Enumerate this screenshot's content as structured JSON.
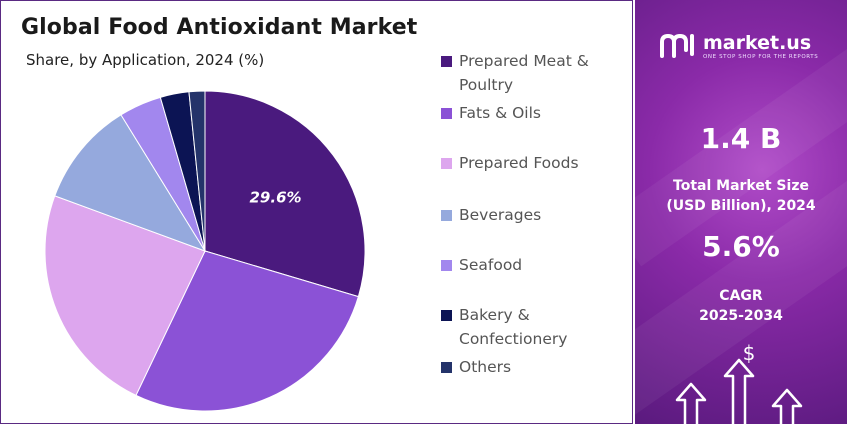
{
  "header": {
    "title": "Global Food Antioxidant Market",
    "subtitle": "Share, by Application, 2024 (%)"
  },
  "chart_data": {
    "type": "pie",
    "categories": [
      "Prepared Meat & Poultry",
      "Fats & Oils",
      "Prepared Foods",
      "Beverages",
      "Seafood",
      "Bakery & Confectionery",
      "Others"
    ],
    "values": [
      29.6,
      27.5,
      23.5,
      10.6,
      4.3,
      2.9,
      1.6
    ],
    "colors": [
      "#4a1a7e",
      "#8b52d6",
      "#dda6ee",
      "#95a9dd",
      "#a287ee",
      "#0c1454",
      "#24336a"
    ],
    "data_labels": [
      {
        "index": 0,
        "text": "29.6%"
      }
    ],
    "legend_placement": "right"
  },
  "sidebar": {
    "brand": "market.us",
    "tagline": "ONE STOP SHOP FOR THE REPORTS",
    "market_size_value": "1.4 B",
    "market_size_label_1": "Total Market Size",
    "market_size_label_2": "(USD Billion), 2024",
    "cagr_value": "5.6%",
    "cagr_label_1": "CAGR",
    "cagr_label_2": "2025-2034",
    "icon": "dollar-growth-arrows-icon",
    "background_colors": [
      "#b04cc8",
      "#5a1a7e"
    ]
  }
}
